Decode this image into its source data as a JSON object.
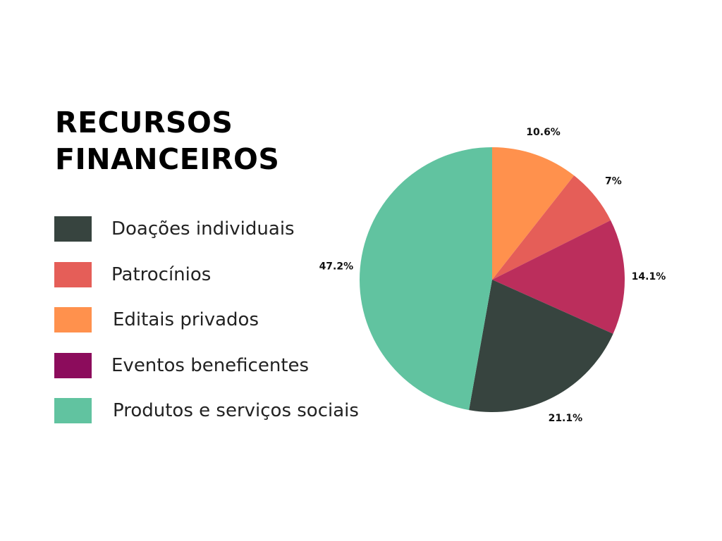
{
  "chart_data": {
    "type": "pie",
    "title_lines": [
      "RECURSOS",
      "FINANCEIROS"
    ],
    "legend": [
      {
        "label": "Doações individuais",
        "color": "#37443f"
      },
      {
        "label": "Patrocínios",
        "color": "#e55e58"
      },
      {
        "label": "Editais privados",
        "color": "#ff914d"
      },
      {
        "label": "Eventos beneficentes",
        "color": "#8c0c5c"
      },
      {
        "label": "Produtos e serviços sociais",
        "color": "#61c3a0"
      }
    ],
    "slices": [
      {
        "value": 10.6,
        "label": "10.6%",
        "color": "#ff914d"
      },
      {
        "value": 7,
        "label": "7%",
        "color": "#e55e58"
      },
      {
        "value": 14.1,
        "label": "14.1%",
        "color": "#bb2e5c"
      },
      {
        "value": 21.1,
        "label": "21.1%",
        "color": "#37443f"
      },
      {
        "value": 47.2,
        "label": "47.2%",
        "color": "#61c3a0"
      }
    ],
    "start_angle": "12 o'clock",
    "direction": "clockwise"
  }
}
